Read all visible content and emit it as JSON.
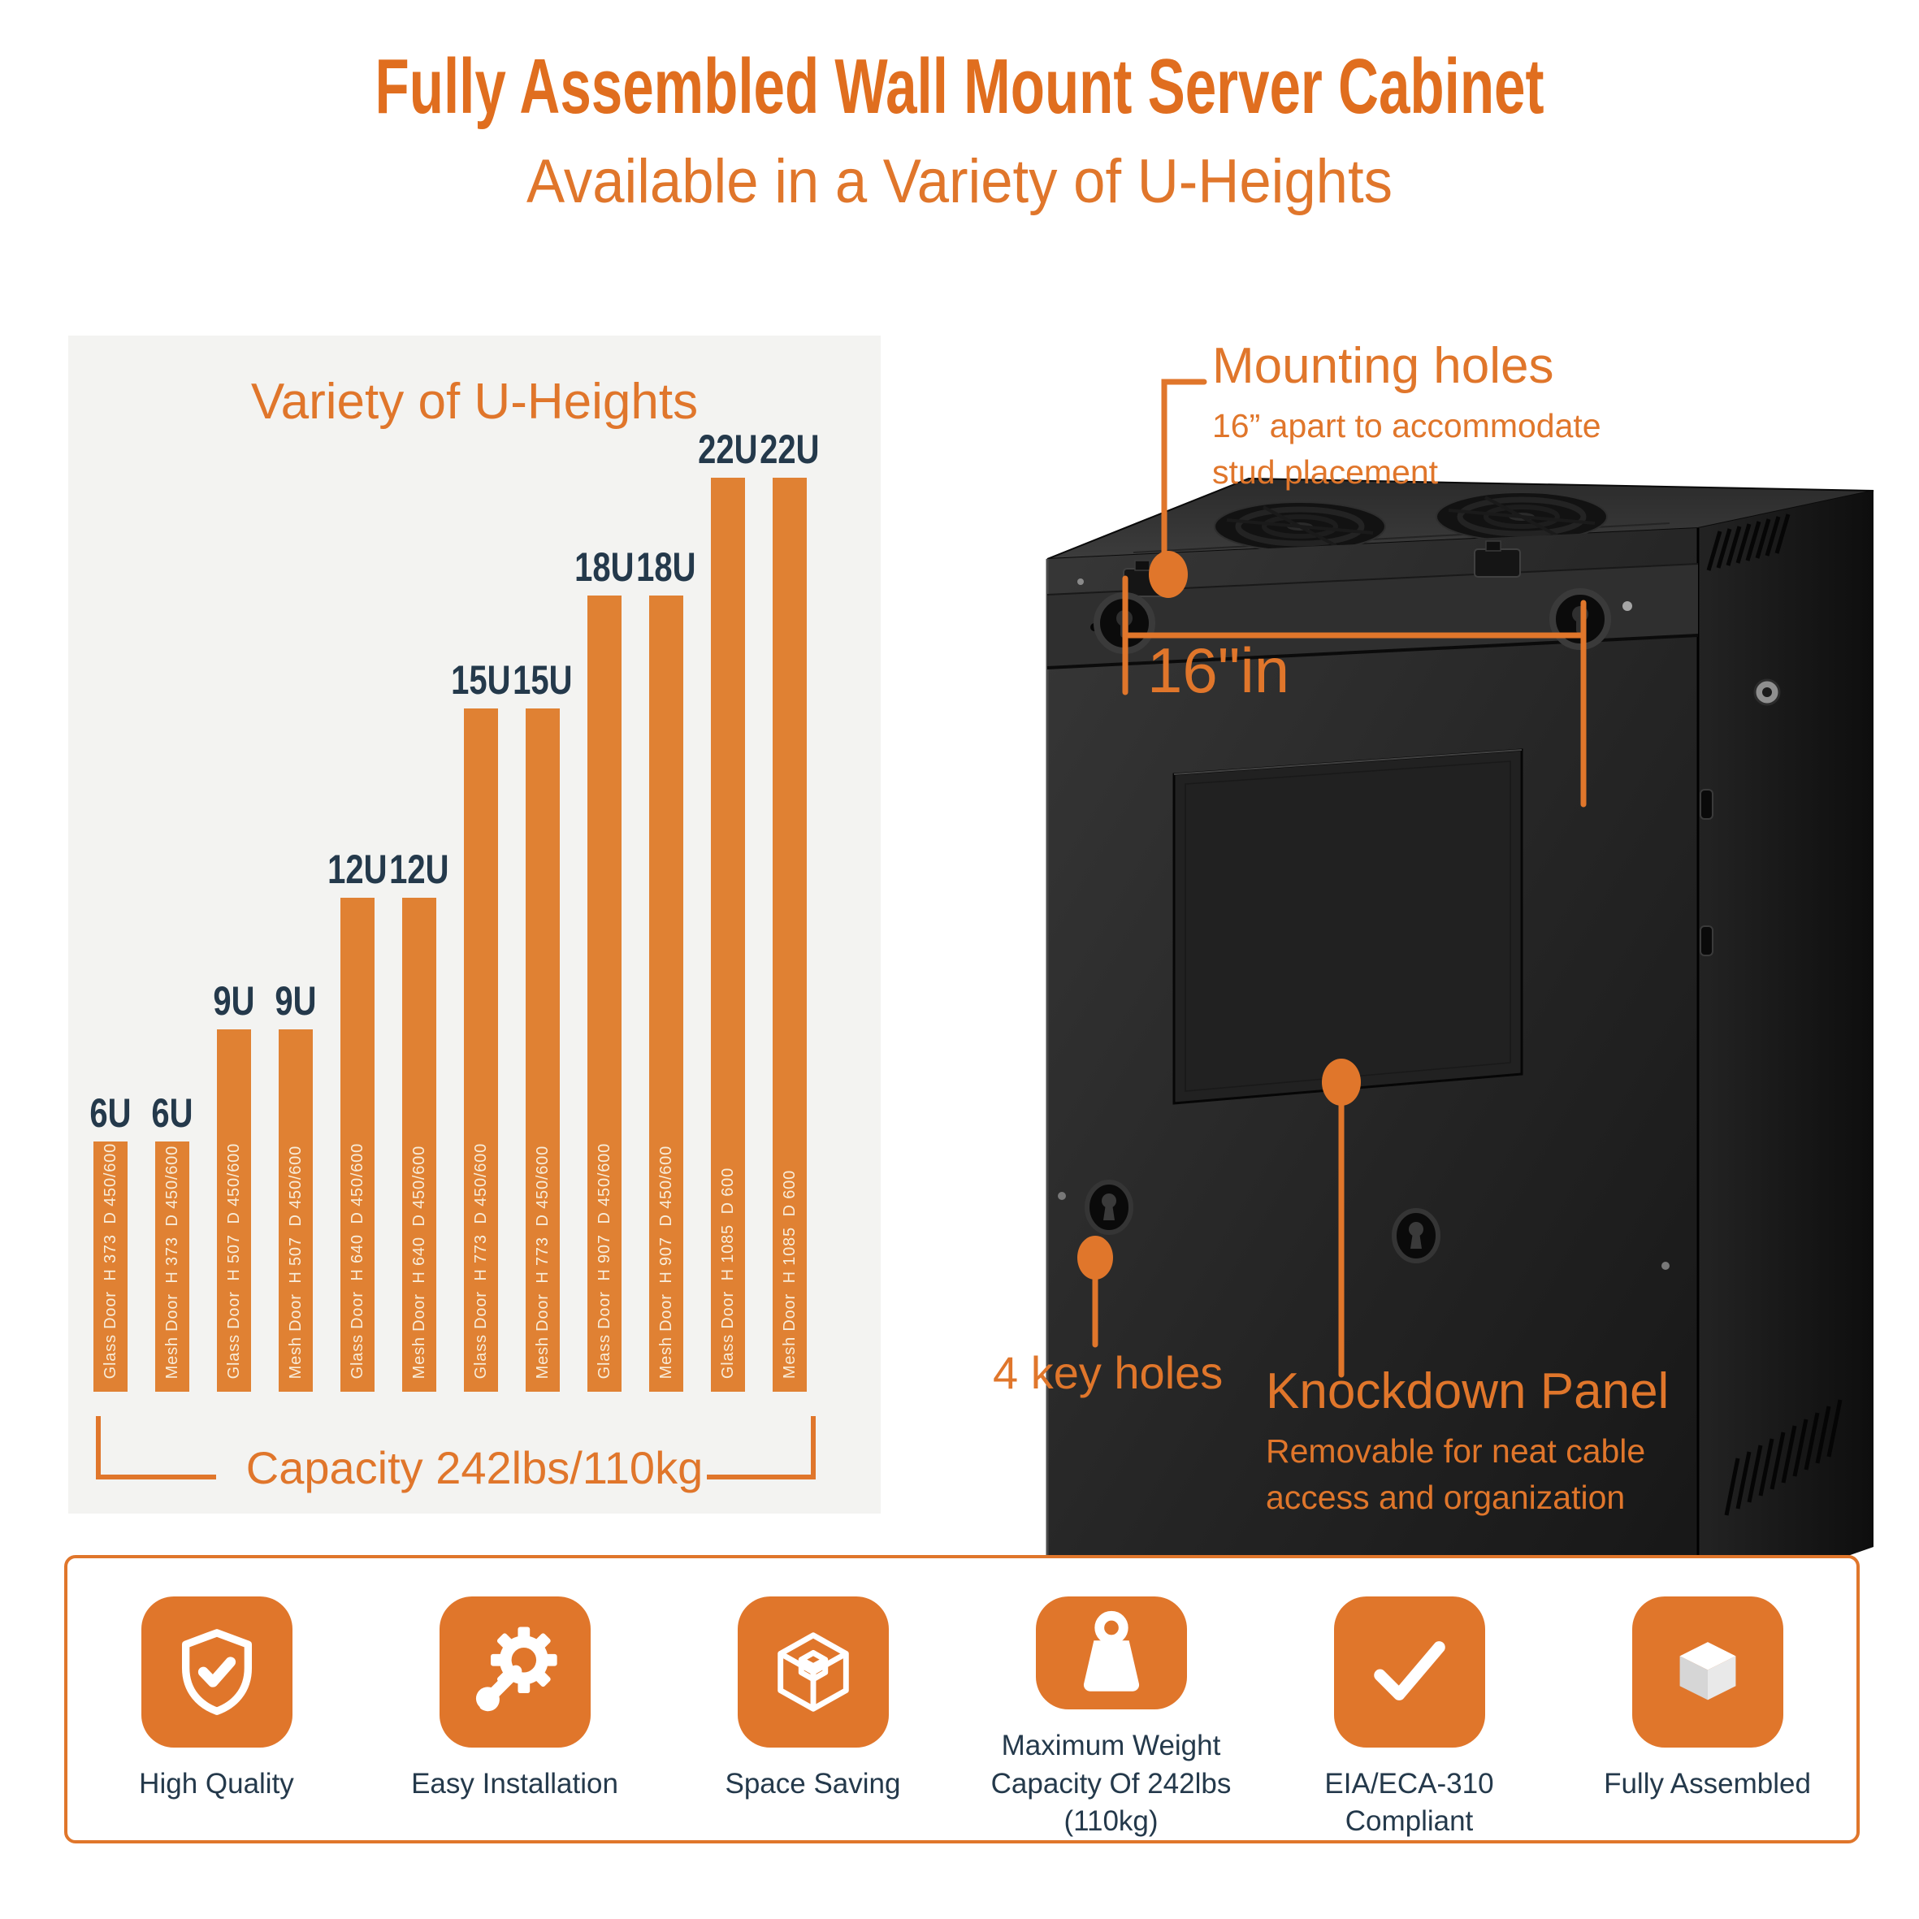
{
  "header": {
    "title": "Fully Assembled Wall Mount Server Cabinet",
    "subtitle": "Available in a Variety of U-Heights"
  },
  "colors": {
    "accent": "#E0762B",
    "accent_deep": "#E06E1F",
    "bar": "#E08133",
    "bar_text": "#F8ECD8",
    "navy": "#24394B",
    "panel_bg": "#F3F3F1",
    "cabinet_dark": "#1B1B1B"
  },
  "chart_data": {
    "type": "bar",
    "title": "Variety of U-Heights",
    "footer": "Capacity 242lbs/110kg",
    "categories": [
      "6U",
      "6U",
      "9U",
      "9U",
      "12U",
      "12U",
      "15U",
      "15U",
      "18U",
      "18U",
      "22U",
      "22U"
    ],
    "values": [
      6,
      6,
      9,
      9,
      12,
      12,
      15,
      15,
      18,
      18,
      22,
      22
    ],
    "unit": "U",
    "grid": false,
    "bars": [
      {
        "u": "6U",
        "value": 6,
        "label": "Glass Door  H 373  D 450/600"
      },
      {
        "u": "6U",
        "value": 6,
        "label": "Mesh Door  H 373  D 450/600"
      },
      {
        "u": "9U",
        "value": 9,
        "label": "Glass Door  H 507  D 450/600"
      },
      {
        "u": "9U",
        "value": 9,
        "label": "Mesh Door  H 507  D 450/600"
      },
      {
        "u": "12U",
        "value": 12,
        "label": "Glass Door  H 640  D 450/600"
      },
      {
        "u": "12U",
        "value": 12,
        "label": "Mesh Door  H 640  D 450/600"
      },
      {
        "u": "15U",
        "value": 15,
        "label": "Glass Door  H 773  D 450/600"
      },
      {
        "u": "15U",
        "value": 15,
        "label": "Mesh Door  H 773  D 450/600"
      },
      {
        "u": "18U",
        "value": 18,
        "label": "Glass Door  H 907  D 450/600"
      },
      {
        "u": "18U",
        "value": 18,
        "label": "Mesh Door  H 907  D 450/600"
      },
      {
        "u": "22U",
        "value": 22,
        "label": "Glass Door  H 1085  D 600"
      },
      {
        "u": "22U",
        "value": 22,
        "label": "Mesh Door  H 1085  D 600"
      }
    ]
  },
  "cabinet": {
    "annotations": {
      "mounting_title": "Mounting holes",
      "mounting_desc1": "16” apart to accommodate",
      "mounting_desc2": "stud placement",
      "dimension": "16\"in",
      "keyholes_label": "4 key holes",
      "knockdown_title": "Knockdown Panel",
      "knockdown_desc1": "Removable for neat cable",
      "knockdown_desc2": "access and organization"
    }
  },
  "features": [
    {
      "icon": "shield-check-icon",
      "label": "High Quality"
    },
    {
      "icon": "wrench-gear-icon",
      "label": "Easy Installation"
    },
    {
      "icon": "cube-wireframe-icon",
      "label": "Space Saving"
    },
    {
      "icon": "weight-icon",
      "label": "Maximum Weight Capacity Of 242lbs (110kg)"
    },
    {
      "icon": "checkmark-icon",
      "label": "EIA/ECA-310 Compliant"
    },
    {
      "icon": "assembled-box-icon",
      "label": "Fully Assembled"
    }
  ]
}
